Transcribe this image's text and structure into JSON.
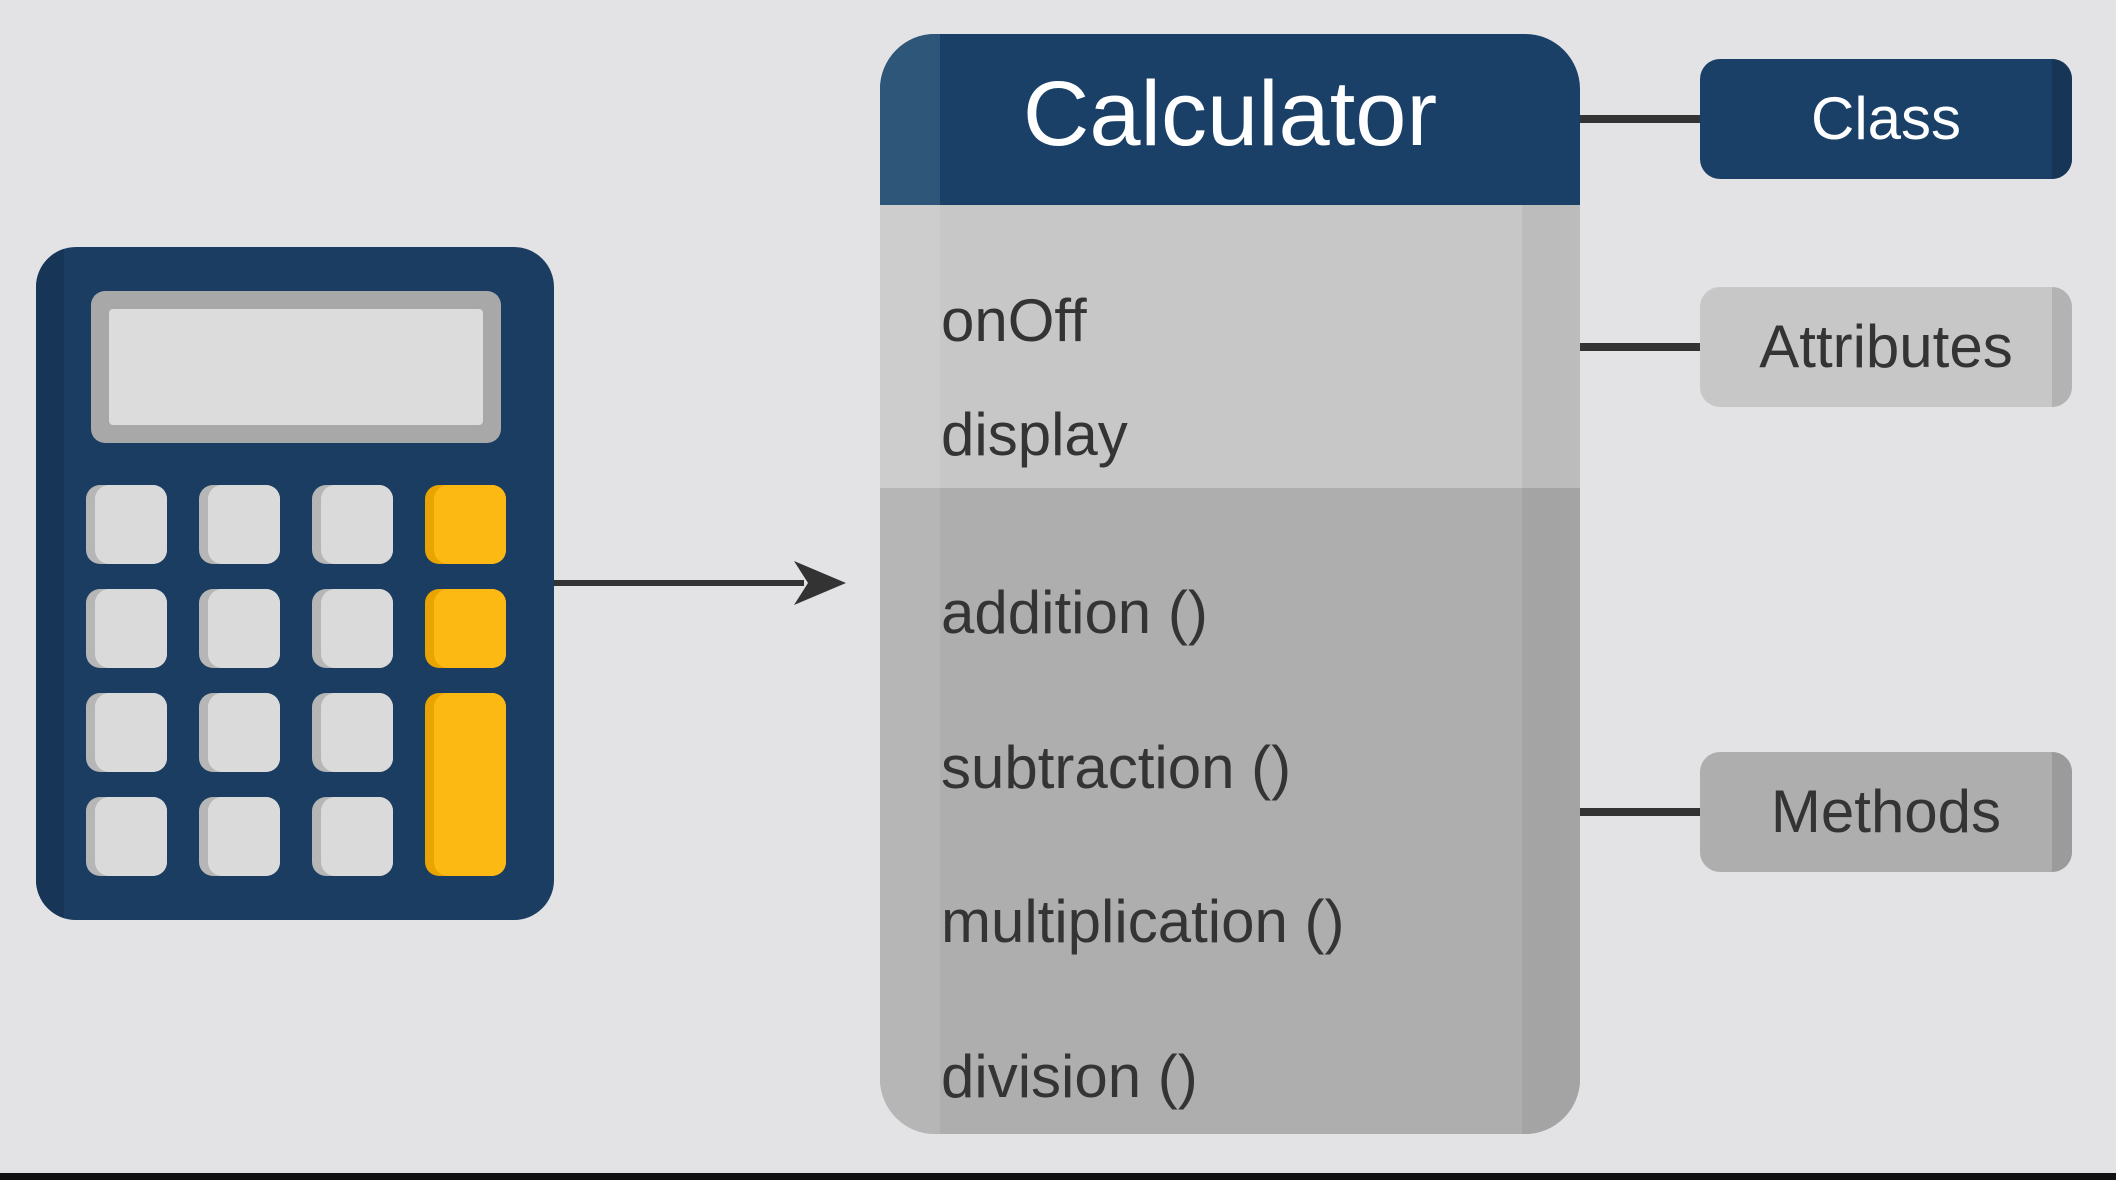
{
  "class_box": {
    "name": "Calculator",
    "attributes": [
      "onOff",
      "display"
    ],
    "methods": [
      "addition ()",
      "subtraction ()",
      "multiplication ()",
      "division ()"
    ]
  },
  "labels": {
    "class": "Class",
    "attributes": "Attributes",
    "methods": "Methods"
  },
  "colors": {
    "navy": "#1a4068",
    "attribute_gray": "#c7c7c7",
    "method_gray": "#aeaeae",
    "accent_yellow": "#fdb913",
    "background": "#e3e3e6",
    "text_dark": "#343434"
  },
  "icons": {
    "illustration": "calculator-icon",
    "arrow": "arrow-right-icon"
  }
}
